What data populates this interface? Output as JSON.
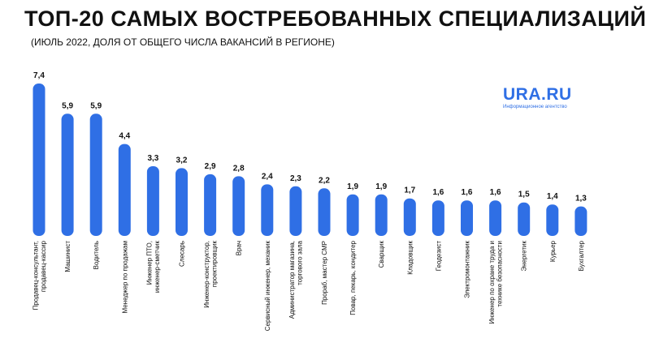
{
  "header": {
    "title": "ТОП-20 САМЫХ ВОСТРЕБОВАННЫХ СПЕЦИАЛИЗАЦИЙ",
    "subtitle": "(ИЮЛЬ 2022, ДОЛЯ ОТ ОБЩЕГО ЧИСЛА ВАКАНСИЙ В РЕГИОНЕ)"
  },
  "logo": {
    "main": "URA.RU",
    "sub": "Информационное агентство"
  },
  "colors": {
    "bar": "#2f6fe5",
    "text": "#111111",
    "background": "#ffffff"
  },
  "chart_data": {
    "type": "bar",
    "title": "ТОП-20 САМЫХ ВОСТРЕБОВАННЫХ СПЕЦИАЛИЗАЦИЙ",
    "subtitle": "(ИЮЛЬ 2022, ДОЛЯ ОТ ОБЩЕГО ЧИСЛА ВАКАНСИЙ В РЕГИОНЕ)",
    "categories": [
      [
        "Продавец-консультант,",
        "продавец-кассир"
      ],
      [
        "Машинист"
      ],
      [
        "Водитель"
      ],
      [
        "Менеджер по продажам"
      ],
      [
        "Инженер ПТО,",
        "инженер-сметчик"
      ],
      [
        "Слесарь"
      ],
      [
        "Инженер-конструктор,",
        "проектировщик"
      ],
      [
        "Врач"
      ],
      [
        "Сервисный инженер, механик"
      ],
      [
        "Администратор магазина,",
        "торгового зала"
      ],
      [
        "Прораб, мастер СМР"
      ],
      [
        "Повар, пекарь, кондитер"
      ],
      [
        "Сварщик"
      ],
      [
        "Кладовщик"
      ],
      [
        "Геодезист"
      ],
      [
        "Электромонтажник"
      ],
      [
        "Инженер по охране труда и",
        "технике безопасности"
      ],
      [
        "Энергетик"
      ],
      [
        "Курьер"
      ],
      [
        "Бухгалтер"
      ]
    ],
    "values": [
      7.4,
      5.9,
      5.9,
      4.4,
      3.3,
      3.2,
      2.9,
      2.8,
      2.4,
      2.3,
      2.2,
      1.9,
      1.9,
      1.7,
      1.6,
      1.6,
      1.6,
      1.5,
      1.4,
      1.3
    ],
    "value_labels": [
      "7,4",
      "5,9",
      "5,9",
      "4,4",
      "3,3",
      "3,2",
      "2,9",
      "2,8",
      "2,4",
      "2,3",
      "2,2",
      "1,9",
      "1,9",
      "1,7",
      "1,6",
      "1,6",
      "1,6",
      "1,5",
      "1,4",
      "1,3"
    ],
    "ylim": [
      0,
      7.4
    ],
    "grid": false,
    "legend": "none"
  }
}
